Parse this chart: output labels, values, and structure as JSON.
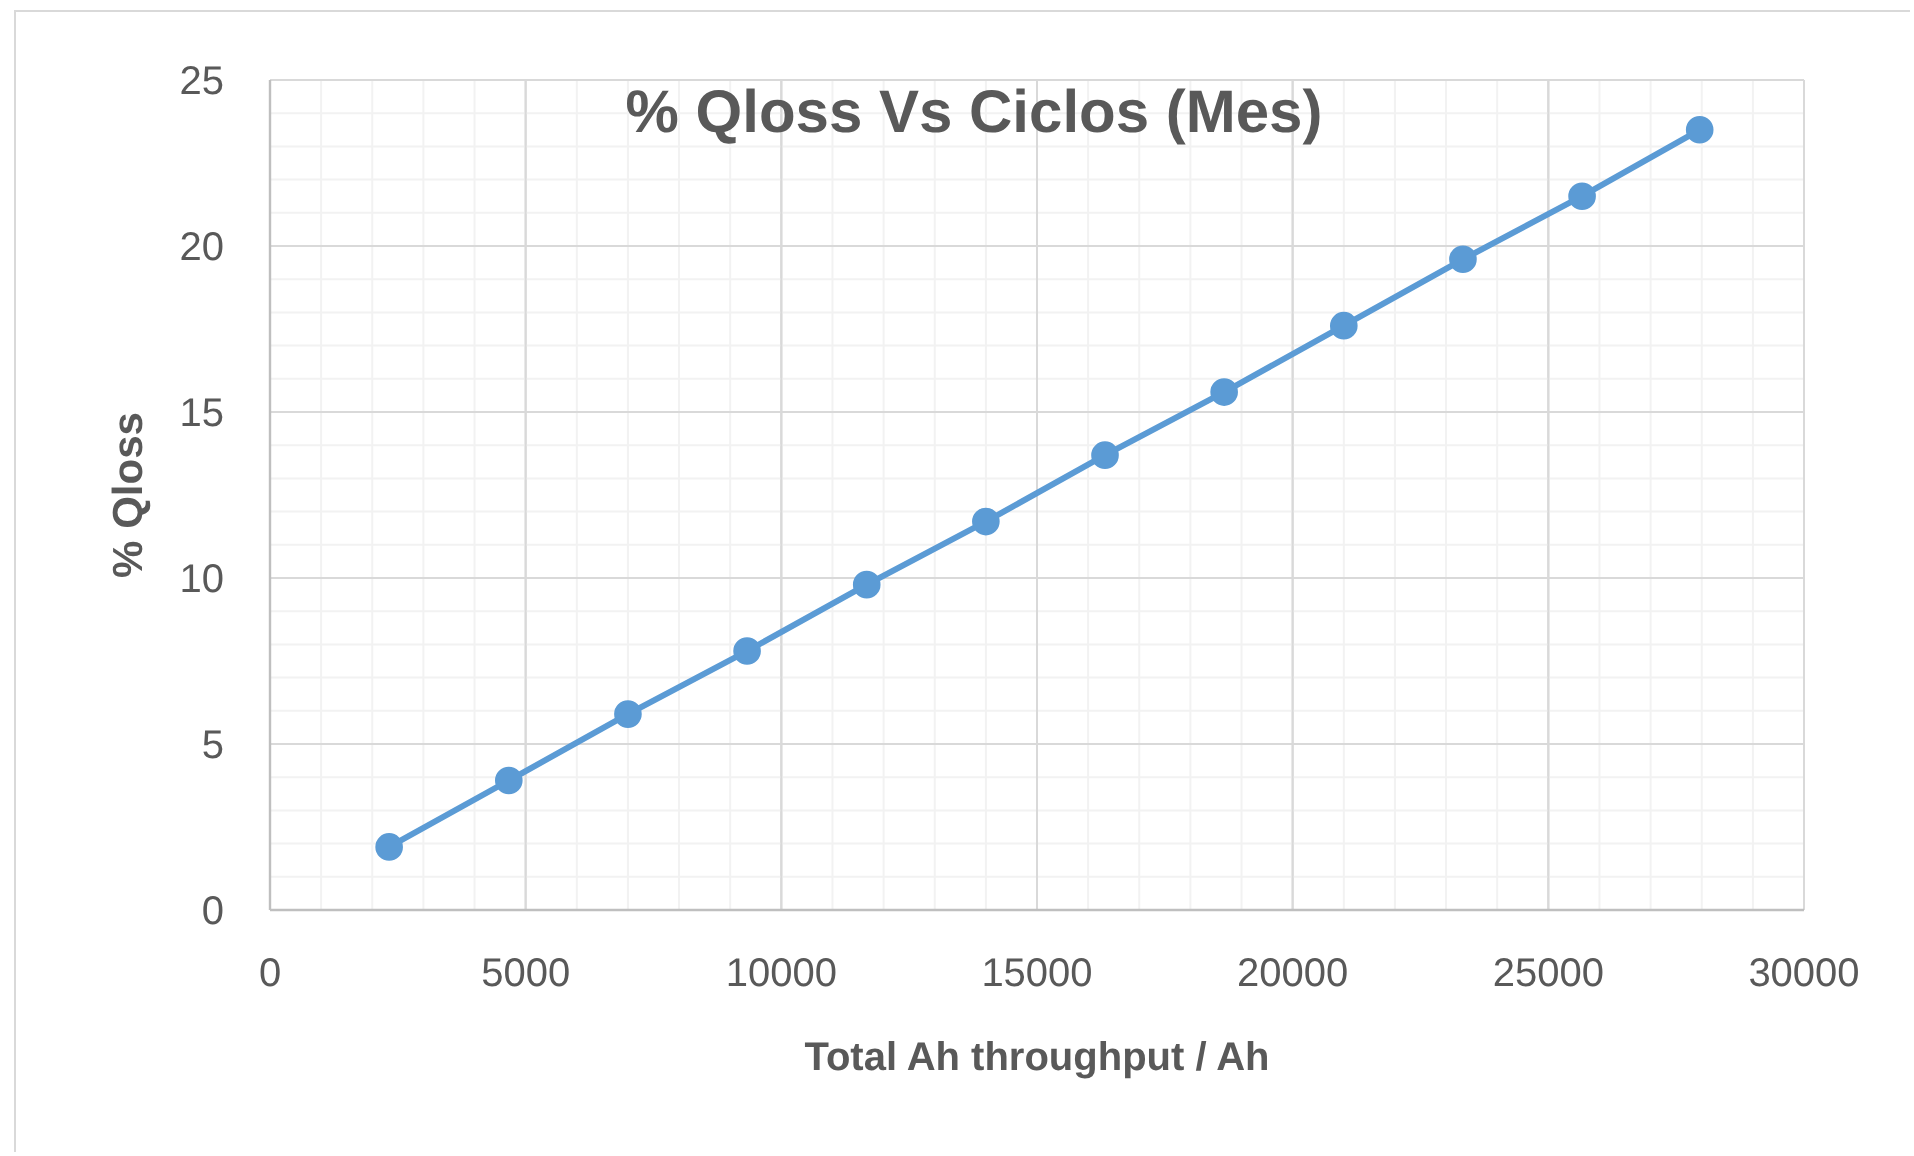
{
  "chart_data": {
    "type": "line",
    "title": "% Qloss Vs Ciclos (Mes)",
    "xlabel": "Total Ah throughput / Ah",
    "ylabel": "% Qloss",
    "x": [
      2330,
      4670,
      7000,
      9330,
      11670,
      14000,
      16330,
      18660,
      21000,
      23330,
      25660,
      27960
    ],
    "series": [
      {
        "color": "#5b9bd5",
        "values": [
          1.9,
          3.9,
          5.9,
          7.8,
          9.8,
          11.7,
          13.7,
          15.6,
          17.6,
          19.6,
          21.5,
          23.5
        ]
      }
    ],
    "xlim": [
      0,
      30000
    ],
    "xticks": [
      0,
      {
        "value": 1000,
        "label": null
      },
      {
        "value": 2000,
        "label": null
      },
      {
        "value": 3000,
        "label": null
      },
      {
        "value": 4000,
        "label": null
      },
      5000,
      {
        "value": 6000,
        "label": null
      },
      {
        "value": 7000,
        "label": null
      },
      {
        "value": 8000,
        "label": null
      },
      {
        "value": 9000,
        "label": null
      },
      10000,
      {
        "value": 11000,
        "label": null
      },
      {
        "value": 12000,
        "label": null
      },
      {
        "value": 13000,
        "label": null
      },
      {
        "value": 14000,
        "label": null
      },
      15000,
      {
        "value": 16000,
        "label": null
      },
      {
        "value": 17000,
        "label": null
      },
      {
        "value": 18000,
        "label": null
      },
      {
        "value": 19000,
        "label": null
      },
      20000,
      {
        "value": 21000,
        "label": null
      },
      {
        "value": 22000,
        "label": null
      },
      {
        "value": 23000,
        "label": null
      },
      {
        "value": 24000,
        "label": null
      },
      25000,
      {
        "value": 26000,
        "label": null
      },
      {
        "value": 27000,
        "label": null
      },
      {
        "value": 28000,
        "label": null
      },
      {
        "value": 29000,
        "label": null
      },
      30000
    ],
    "ylim": [
      0,
      25
    ],
    "yticks": [
      0,
      {
        "value": 1,
        "label": null
      },
      {
        "value": 2,
        "label": null
      },
      {
        "value": 3,
        "label": null
      },
      {
        "value": 4,
        "label": null
      },
      5,
      {
        "value": 6,
        "label": null
      },
      {
        "value": 7,
        "label": null
      },
      {
        "value": 8,
        "label": null
      },
      {
        "value": 9,
        "label": null
      },
      10,
      {
        "value": 11,
        "label": null
      },
      {
        "value": 12,
        "label": null
      },
      {
        "value": 13,
        "label": null
      },
      {
        "value": 14,
        "label": null
      },
      15,
      {
        "value": 16,
        "label": null
      },
      {
        "value": 17,
        "label": null
      },
      {
        "value": 18,
        "label": null
      },
      {
        "value": 19,
        "label": null
      },
      20,
      {
        "value": 21,
        "label": null
      },
      {
        "value": 22,
        "label": null
      },
      {
        "value": 23,
        "label": null
      },
      {
        "value": 24,
        "label": null
      },
      25
    ],
    "grid": true,
    "marker": "circle"
  }
}
